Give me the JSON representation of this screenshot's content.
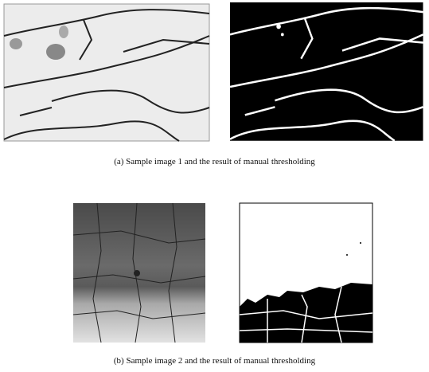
{
  "captions": [
    "(a)  Sample image 1 and the result of manual thresholding",
    "(b)  Sample image 2 and the result of manual thresholding"
  ]
}
